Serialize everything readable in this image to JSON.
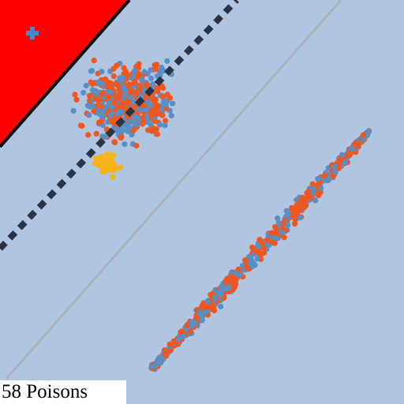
{
  "game": {
    "poison_counter": "58 Poisons",
    "plus_marker_icon": "plus-icon",
    "colors": {
      "background": "#afc5e0",
      "danger_zone": "#ff0000",
      "danger_zone_edge": "#000000",
      "boundary_dashed": "#2b3445",
      "reference_line": "#a9b3ba",
      "dot_orange": "#f0561d",
      "dot_blue": "#5a8fc4",
      "dot_yellow": "#f8b316",
      "plus_marker": "#4a86c8"
    }
  }
}
